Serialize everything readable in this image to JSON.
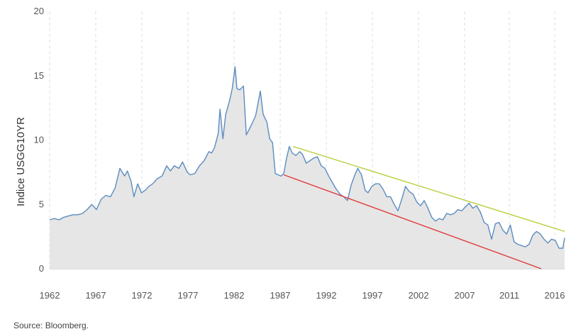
{
  "chart_data": {
    "type": "area",
    "title": "",
    "xlabel": "",
    "ylabel": "Indice USGG10YR",
    "source": "Source: Bloomberg.",
    "grid": true,
    "xlim": [
      1962,
      2017
    ],
    "ylim": [
      0,
      20
    ],
    "x_ticks": [
      "1962",
      "1967",
      "1972",
      "1977",
      "1982",
      "1987",
      "1992",
      "1997",
      "2002",
      "2007",
      "2011",
      "2016"
    ],
    "y_ticks": [
      0,
      5,
      10,
      15,
      20
    ],
    "colors": {
      "line": "#5b8cc0",
      "fill": "#e6e6e6",
      "grid": "#dddddd",
      "axis": "#bbbbbb",
      "trend_upper": "#b9cf3a",
      "trend_lower": "#e23b3b"
    },
    "series": [
      {
        "x": [
          1962.0,
          1962.5,
          1963.0,
          1963.5,
          1964.0,
          1964.5,
          1965.0,
          1965.5,
          1966.0,
          1966.5,
          1967.0,
          1967.5,
          1968.0,
          1968.5,
          1969.0,
          1969.5,
          1970.0,
          1970.3,
          1970.7,
          1971.0,
          1971.4,
          1971.8,
          1972.2,
          1972.6,
          1973.0,
          1973.5,
          1974.0,
          1974.5,
          1974.9,
          1975.3,
          1975.8,
          1976.2,
          1976.7,
          1977.0,
          1977.5,
          1978.0,
          1978.5,
          1979.0,
          1979.3,
          1979.6,
          1980.0,
          1980.2,
          1980.5,
          1980.8,
          1981.2,
          1981.5,
          1981.8,
          1982.0,
          1982.3,
          1982.7,
          1983.0,
          1983.5,
          1984.0,
          1984.5,
          1984.8,
          1985.2,
          1985.5,
          1985.8,
          1986.1,
          1986.4,
          1986.7,
          1987.0,
          1987.3,
          1987.6,
          1987.9,
          1988.3,
          1988.7,
          1989.0,
          1989.4,
          1989.8,
          1990.2,
          1990.6,
          1991.0,
          1991.4,
          1991.8,
          1992.2,
          1992.6,
          1993.0,
          1993.4,
          1993.8,
          1994.2,
          1994.6,
          1994.9,
          1995.3,
          1995.7,
          1996.0,
          1996.4,
          1996.8,
          1997.2,
          1997.6,
          1998.0,
          1998.4,
          1998.8,
          1999.2,
          1999.6,
          2000.0,
          2000.4,
          2000.8,
          2001.2,
          2001.6,
          2002.0,
          2002.4,
          2002.8,
          2003.2,
          2003.6,
          2004.0,
          2004.4,
          2004.8,
          2005.2,
          2005.6,
          2006.0,
          2006.4,
          2006.8,
          2007.2,
          2007.6,
          2008.0,
          2008.4,
          2008.8,
          2009.2,
          2009.6,
          2010.0,
          2010.4,
          2010.8,
          2011.2,
          2011.6,
          2012.0,
          2012.4,
          2012.8,
          2013.2,
          2013.6,
          2014.0,
          2014.4,
          2014.8,
          2015.2,
          2015.6,
          2016.0,
          2016.4,
          2016.8,
          2017.0
        ],
        "values": [
          3.8,
          3.9,
          3.8,
          4.0,
          4.1,
          4.2,
          4.2,
          4.3,
          4.6,
          5.0,
          4.6,
          5.4,
          5.7,
          5.6,
          6.3,
          7.8,
          7.2,
          7.6,
          6.8,
          5.6,
          6.6,
          5.9,
          6.1,
          6.4,
          6.6,
          7.0,
          7.2,
          8.0,
          7.6,
          8.0,
          7.8,
          8.3,
          7.5,
          7.3,
          7.4,
          8.0,
          8.4,
          9.1,
          9.0,
          9.4,
          10.5,
          12.4,
          10.1,
          12.0,
          13.0,
          14.0,
          15.7,
          14.0,
          13.9,
          14.2,
          10.4,
          11.1,
          11.9,
          13.8,
          12.0,
          11.4,
          10.1,
          9.8,
          7.4,
          7.3,
          7.2,
          7.4,
          8.6,
          9.5,
          9.0,
          8.8,
          9.1,
          8.9,
          8.2,
          8.4,
          8.6,
          8.7,
          8.0,
          7.8,
          7.2,
          6.7,
          6.2,
          5.8,
          5.6,
          5.3,
          6.5,
          7.3,
          7.8,
          7.3,
          6.1,
          5.9,
          6.4,
          6.6,
          6.6,
          6.2,
          5.6,
          5.6,
          5.0,
          4.5,
          5.4,
          6.4,
          6.0,
          5.8,
          5.2,
          4.9,
          5.3,
          4.7,
          4.0,
          3.7,
          3.9,
          3.8,
          4.3,
          4.2,
          4.3,
          4.6,
          4.5,
          4.8,
          5.1,
          4.7,
          4.9,
          4.4,
          3.6,
          3.4,
          2.3,
          3.5,
          3.6,
          3.0,
          2.7,
          3.4,
          2.1,
          1.9,
          1.8,
          1.7,
          1.9,
          2.6,
          2.9,
          2.7,
          2.3,
          2.0,
          2.3,
          2.2,
          1.6,
          1.6,
          2.4
        ]
      }
    ],
    "trendlines": [
      {
        "name": "",
        "x": [
          1988.0,
          2017.0
        ],
        "y": [
          9.5,
          2.9
        ]
      },
      {
        "name": "",
        "x": [
          1987.0,
          2014.5
        ],
        "y": [
          7.3,
          0.0
        ]
      }
    ]
  }
}
